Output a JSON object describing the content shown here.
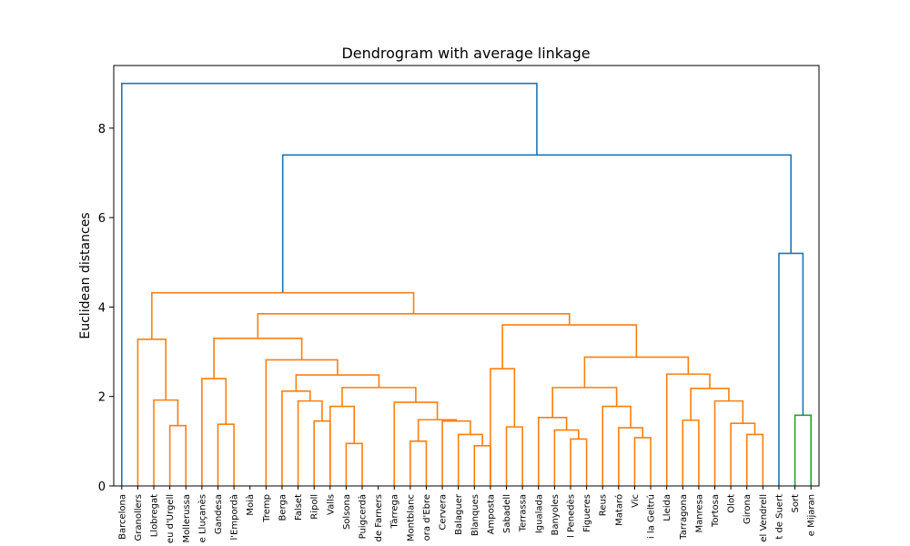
{
  "chart_data": {
    "type": "dendrogram",
    "title": "Dendrogram with average linkage",
    "xlabel": "",
    "ylabel": "Euclidean distances",
    "ylim": [
      0,
      9.4
    ],
    "yticks": [
      0,
      2,
      4,
      6,
      8
    ],
    "grid": false,
    "leaves": [
      "Barcelona",
      "Granollers",
      "Llobregat",
      "eu d'Urgell",
      "Mollerussa",
      "e Lluçanès",
      "Gandesa",
      "l'Empordà",
      "Moià",
      "Tremp",
      "Berga",
      "Falset",
      "Ripoll",
      "Valls",
      "Solsona",
      "Puigcerdà",
      "de Farners",
      "Tàrrega",
      "Montblanc",
      "ora d'Ebre",
      "Cervera",
      "Balaguer",
      "Blanques",
      "Amposta",
      "Sabadell",
      "Terrassa",
      "Igualada",
      "Banyoles",
      "l Penedès",
      "Figueres",
      "Reus",
      "Mataró",
      "Vic",
      "i la Geltrú",
      "Lleida",
      "Tarragona",
      "Manresa",
      "Tortosa",
      "Olot",
      "Girona",
      "el Vendrell",
      "t de Suert",
      "Sort",
      "e Mijaran"
    ],
    "merges": [
      {
        "a": "L22",
        "b": "L23",
        "h": 0.9
      },
      {
        "a": "L14",
        "b": "L15",
        "h": 0.95
      },
      {
        "a": "L18",
        "b": "L19",
        "h": 1.0
      },
      {
        "a": "L28",
        "b": "L29",
        "h": 1.05
      },
      {
        "a": "L32",
        "b": "L33",
        "h": 1.08
      },
      {
        "a": "L21",
        "b": "M0",
        "h": 1.15
      },
      {
        "a": "L39",
        "b": "L40",
        "h": 1.15
      },
      {
        "a": "L27",
        "b": "M3",
        "h": 1.25
      },
      {
        "a": "L31",
        "b": "M4",
        "h": 1.3
      },
      {
        "a": "L25",
        "b": "L24",
        "h": 1.32
      },
      {
        "a": "L3",
        "b": "L4",
        "h": 1.35
      },
      {
        "a": "L6",
        "b": "L7",
        "h": 1.38
      },
      {
        "a": "L38",
        "b": "M6",
        "h": 1.4
      },
      {
        "a": "L20",
        "b": "M5",
        "h": 1.45
      },
      {
        "a": "L12",
        "b": "L13",
        "h": 1.45
      },
      {
        "a": "L35",
        "b": "L36",
        "h": 1.47
      },
      {
        "a": "M2",
        "b": "M13",
        "h": 1.48
      },
      {
        "a": "L26",
        "b": "M7",
        "h": 1.53
      },
      {
        "a": "L42",
        "b": "L43",
        "h": 1.58
      },
      {
        "a": "L13",
        "b": "M1",
        "h": 1.78
      },
      {
        "a": "L30",
        "b": "M8",
        "h": 1.78
      },
      {
        "a": "L17",
        "b": "M16",
        "h": 1.87
      },
      {
        "a": "L37",
        "b": "M12",
        "h": 1.9
      },
      {
        "a": "L11",
        "b": "M14",
        "h": 1.9
      },
      {
        "a": "L2",
        "b": "M10",
        "h": 1.92
      },
      {
        "a": "L10",
        "b": "M23",
        "h": 2.12
      },
      {
        "a": "M15",
        "b": "M22",
        "h": 2.18
      },
      {
        "a": "M19",
        "b": "M21",
        "h": 2.2
      },
      {
        "a": "M17",
        "b": "M20",
        "h": 2.2
      },
      {
        "a": "L5",
        "b": "M11",
        "h": 2.4
      },
      {
        "a": "M25",
        "b": "M27",
        "h": 2.48
      },
      {
        "a": "L34",
        "b": "M26",
        "h": 2.5
      },
      {
        "a": "L23",
        "b": "M9",
        "h": 2.62
      },
      {
        "a": "L9",
        "b": "M30",
        "h": 2.82
      },
      {
        "a": "M28",
        "b": "M31",
        "h": 2.88
      },
      {
        "a": "L1",
        "b": "M24",
        "h": 3.28
      },
      {
        "a": "M29",
        "b": "M33",
        "h": 3.3
      },
      {
        "a": "M32",
        "b": "M34",
        "h": 3.6
      },
      {
        "a": "M36",
        "b": "M37",
        "h": 3.85
      },
      {
        "a": "M35",
        "b": "M38",
        "h": 4.32
      },
      {
        "a": "L41",
        "b": "M18",
        "h": 5.2
      },
      {
        "a": "M39",
        "b": "M40",
        "h": 7.4
      },
      {
        "a": "L0",
        "b": "M41",
        "h": 9.0
      }
    ],
    "colors": {
      "above_threshold": "#1f77b4",
      "cluster_orange": "#ff7f0e",
      "cluster_green": "#2ca02c"
    }
  }
}
